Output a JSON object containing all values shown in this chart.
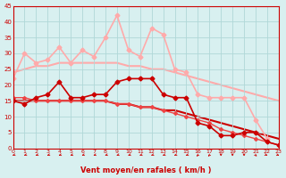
{
  "title": "",
  "xlabel": "Vent moyen/en rafales ( km/h )",
  "ylabel": "",
  "background_color": "#d8f0f0",
  "grid_color": "#b0d8d8",
  "ylim": [
    0,
    45
  ],
  "xlim": [
    0,
    23
  ],
  "yticks": [
    0,
    5,
    10,
    15,
    20,
    25,
    30,
    35,
    40,
    45
  ],
  "xticks": [
    0,
    1,
    2,
    3,
    4,
    5,
    6,
    7,
    8,
    9,
    10,
    11,
    12,
    13,
    14,
    15,
    16,
    17,
    18,
    19,
    20,
    21,
    22,
    23
  ],
  "lines": [
    {
      "x": [
        0,
        1,
        2,
        3,
        4,
        5,
        6,
        7,
        8,
        9,
        10,
        11,
        12,
        13,
        14,
        15,
        16,
        17,
        18,
        19,
        20,
        21,
        22
      ],
      "y": [
        22,
        30,
        27,
        28,
        32,
        27,
        31,
        29,
        35,
        42,
        31,
        29,
        38,
        36,
        25,
        24,
        17,
        16,
        16,
        16,
        16,
        9,
        3
      ],
      "color": "#ffaaaa",
      "linewidth": 1.2,
      "marker": "D",
      "markersize": 2.5,
      "zorder": 2
    },
    {
      "x": [
        0,
        1,
        2,
        3,
        4,
        5,
        6,
        7,
        8,
        9,
        10,
        11,
        12,
        13,
        14,
        15,
        16,
        17,
        18,
        19,
        20,
        21,
        22,
        23
      ],
      "y": [
        24,
        25,
        26,
        26,
        27,
        27,
        27,
        27,
        27,
        27,
        26,
        26,
        25,
        25,
        24,
        23,
        22,
        21,
        20,
        19,
        18,
        17,
        16,
        15
      ],
      "color": "#ffaaaa",
      "linewidth": 1.5,
      "marker": "",
      "markersize": 0,
      "zorder": 1
    },
    {
      "x": [
        0,
        1,
        2,
        3,
        4,
        5,
        6,
        7,
        8,
        9,
        10,
        11,
        12,
        13,
        14,
        15,
        16,
        17,
        18,
        19,
        20,
        21,
        22,
        23
      ],
      "y": [
        15,
        14,
        16,
        17,
        21,
        16,
        16,
        17,
        17,
        21,
        22,
        22,
        22,
        17,
        16,
        16,
        8,
        7,
        4,
        4,
        5,
        5,
        2,
        1
      ],
      "color": "#cc0000",
      "linewidth": 1.2,
      "marker": "D",
      "markersize": 2.5,
      "zorder": 3
    },
    {
      "x": [
        0,
        1,
        2,
        3,
        4,
        5,
        6,
        7,
        8,
        9,
        10,
        11,
        12,
        13,
        14,
        15,
        16,
        17,
        18,
        19,
        20,
        21,
        22,
        23
      ],
      "y": [
        15,
        15,
        15,
        15,
        15,
        15,
        15,
        15,
        15,
        14,
        14,
        13,
        13,
        12,
        12,
        11,
        10,
        9,
        8,
        7,
        6,
        5,
        4,
        3
      ],
      "color": "#cc0000",
      "linewidth": 1.5,
      "marker": "",
      "markersize": 0,
      "zorder": 1
    },
    {
      "x": [
        0,
        1,
        2,
        3,
        4,
        5,
        6,
        7,
        8,
        9,
        10,
        11,
        12,
        13,
        14,
        15,
        16,
        17,
        18,
        19,
        20,
        21,
        22,
        23
      ],
      "y": [
        16,
        16,
        15,
        15,
        15,
        15,
        15,
        15,
        15,
        14,
        14,
        13,
        13,
        12,
        11,
        10,
        9,
        8,
        6,
        5,
        4,
        3,
        2,
        1
      ],
      "color": "#ee4444",
      "linewidth": 1.0,
      "marker": "D",
      "markersize": 2.0,
      "zorder": 2
    }
  ],
  "wind_arrows": {
    "x": [
      0,
      1,
      2,
      3,
      4,
      5,
      6,
      7,
      8,
      9,
      10,
      11,
      12,
      13,
      14,
      15,
      16,
      17,
      18,
      19,
      20,
      21,
      22,
      23
    ],
    "angles": [
      225,
      225,
      225,
      225,
      225,
      225,
      225,
      225,
      225,
      225,
      225,
      225,
      225,
      225,
      225,
      225,
      200,
      200,
      180,
      180,
      180,
      160,
      140,
      135
    ]
  }
}
